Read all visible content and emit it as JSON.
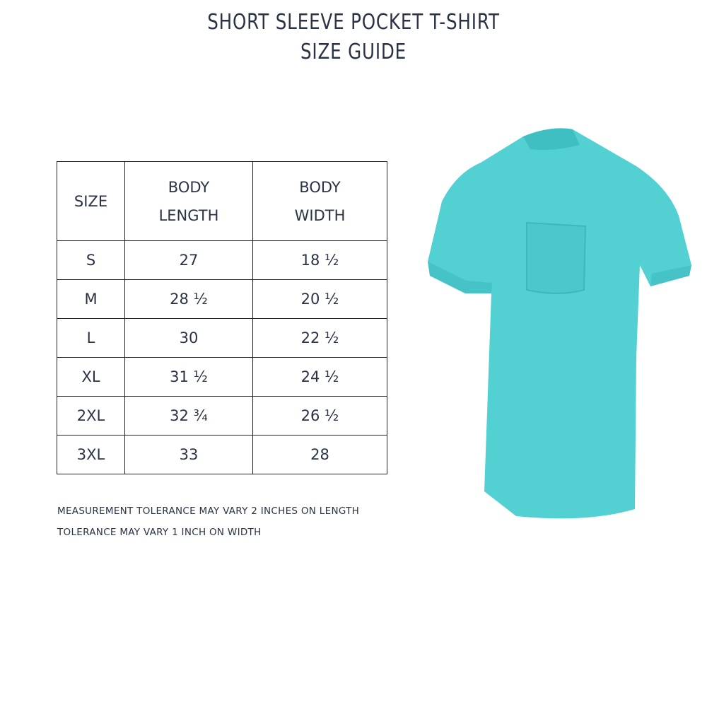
{
  "title_line1": "SHORT SLEEVE POCKET T-SHIRT",
  "title_line2": "SIZE GUIDE",
  "table": {
    "headers": [
      [
        "SIZE"
      ],
      [
        "BODY",
        "LENGTH"
      ],
      [
        "BODY",
        "WIDTH"
      ]
    ],
    "rows": [
      [
        "S",
        "27",
        "18 ½"
      ],
      [
        "M",
        "28 ½",
        "20 ½"
      ],
      [
        "L",
        "30",
        "22 ½"
      ],
      [
        "XL",
        "31 ½",
        "24 ½"
      ],
      [
        "2XL",
        "32 ¾",
        "26 ½"
      ],
      [
        "3XL",
        "33",
        "28"
      ]
    ]
  },
  "notes": [
    "MEASUREMENT TOLERANCE MAY VARY 2 INCHES ON LENGTH",
    "TOLERANCE MAY VARY 1 INCH ON WIDTH"
  ],
  "shirt_color": "#52d0d2"
}
